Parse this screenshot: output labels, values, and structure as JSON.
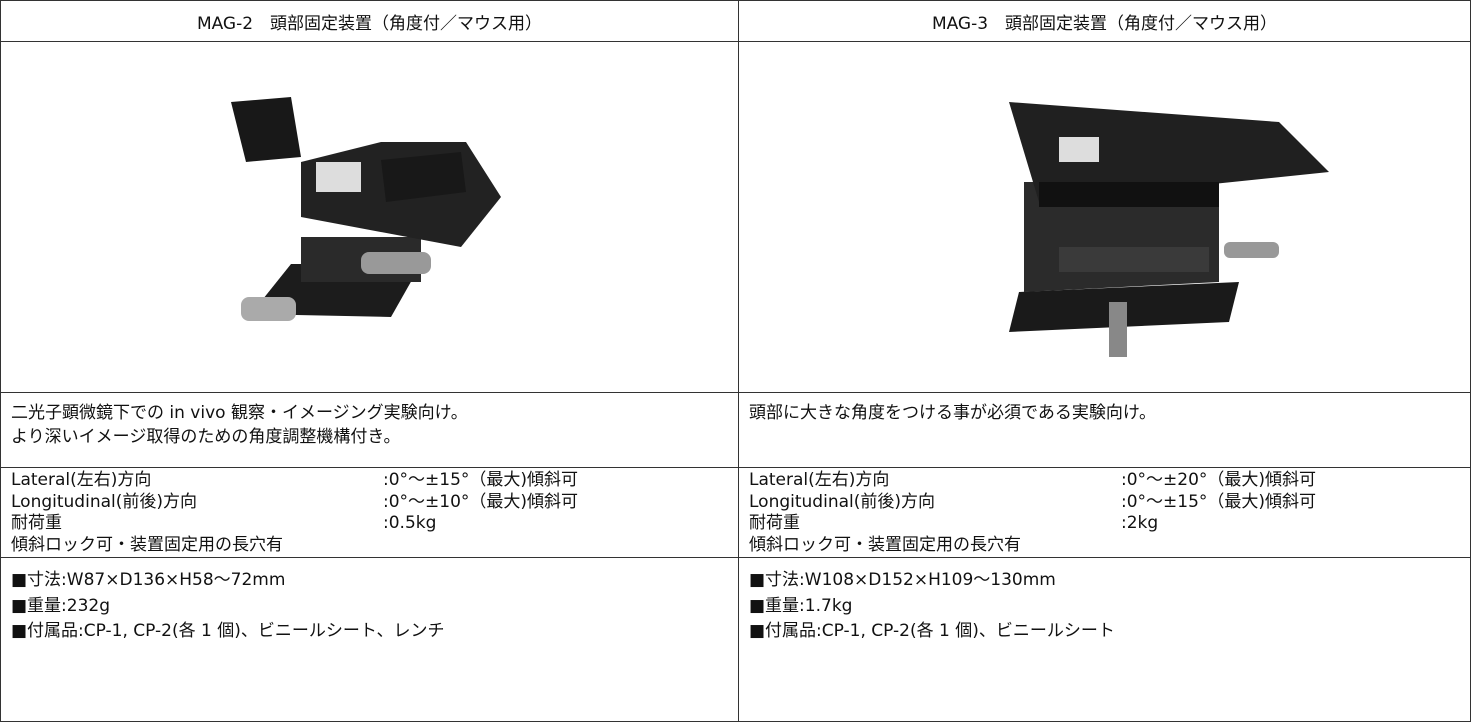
{
  "table": {
    "columns": [
      {
        "header": "MAG-2　頭部固定装置（角度付／マウス用）",
        "description": [
          "二光子顕微鏡下での in vivo 観察・イメージング実験向け。",
          "より深いイメージ取得のための角度調整機構付き。"
        ],
        "specs": [
          {
            "label": "Lateral(左右)方向",
            "value": ":0°～±15°（最大)傾斜可"
          },
          {
            "label": "Longitudinal(前後)方向",
            "value": ":0°～±10°（最大)傾斜可"
          },
          {
            "label": "耐荷重",
            "value": ":0.5kg"
          }
        ],
        "note": "傾斜ロック可・装置固定用の長穴有",
        "details": [
          "■寸法:W87×D136×H58〜72mm",
          "■重量:232g",
          "■付属品:CP-1, CP-2(各 1 個)、ビニールシート、レンチ"
        ]
      },
      {
        "header": "MAG-3　頭部固定装置（角度付／マウス用）",
        "description": [
          "頭部に大きな角度をつける事が必須である実験向け。"
        ],
        "specs": [
          {
            "label": "Lateral(左右)方向",
            "value": ":0°～±20°（最大)傾斜可"
          },
          {
            "label": "Longitudinal(前後)方向",
            "value": ":0°～±15°（最大)傾斜可"
          },
          {
            "label": "耐荷重",
            "value": ":2kg"
          }
        ],
        "note": "傾斜ロック可・装置固定用の長穴有",
        "details": [
          "■寸法:W108×D152×H109〜130mm",
          "■重量:1.7kg",
          "■付属品:CP-1, CP-2(各 1 個)、ビニールシート"
        ]
      }
    ]
  }
}
